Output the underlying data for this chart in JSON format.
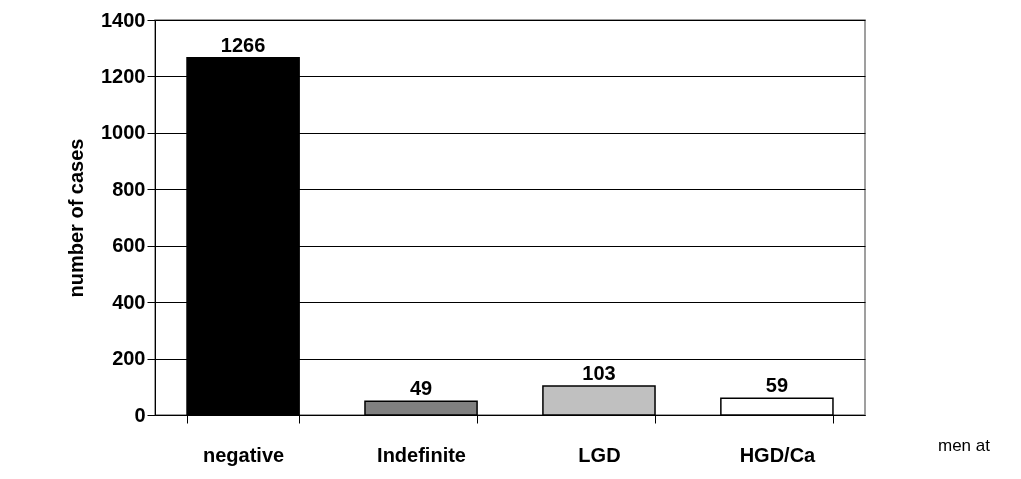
{
  "chart_data": {
    "type": "bar",
    "ylabel": "number of cases",
    "categories": [
      "negative",
      "Indefinite",
      "LGD",
      "HGD/Ca"
    ],
    "values": [
      1266,
      49,
      103,
      59
    ],
    "colors": [
      "#000000",
      "#808080",
      "#c0c0c0",
      "#ffffff"
    ],
    "ylim": [
      0,
      1400
    ],
    "yticks": [
      0,
      200,
      400,
      600,
      800,
      1000,
      1200,
      1400
    ],
    "grid": "y",
    "data_labels": true,
    "annotations": [
      "men at"
    ]
  }
}
